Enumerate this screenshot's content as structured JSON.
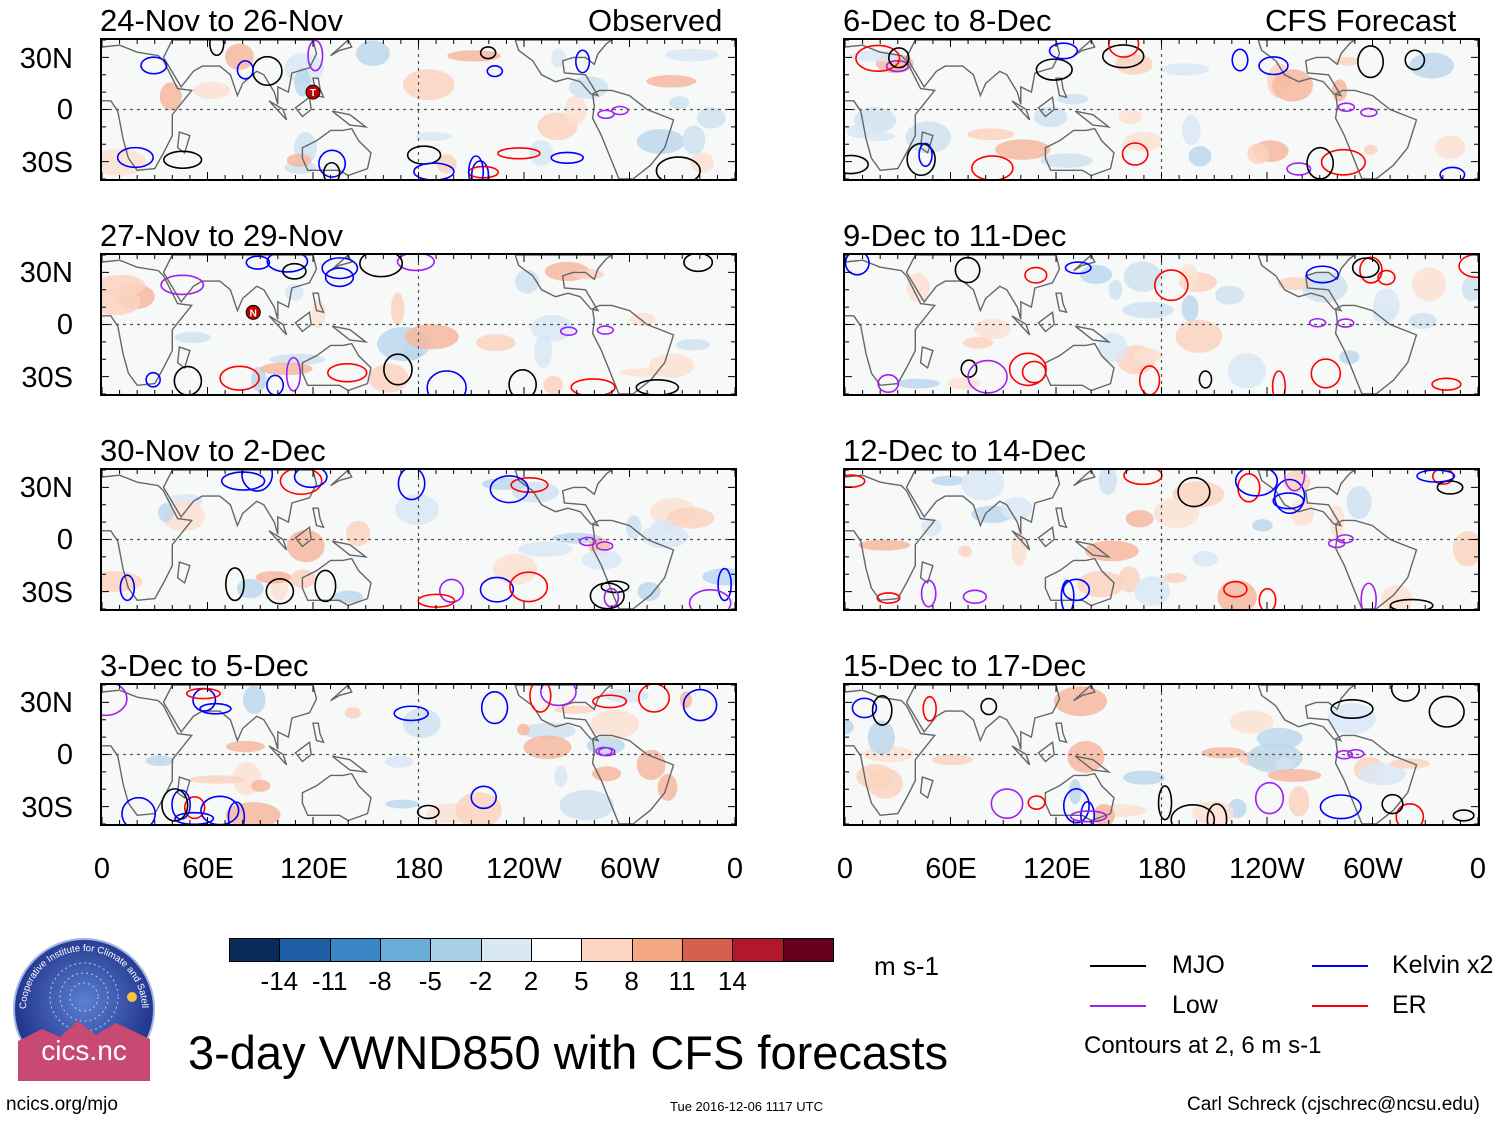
{
  "figure": {
    "main_title": "3-day VWND850 with CFS forecasts",
    "footer_left": "ncics.org/mjo",
    "footer_center": "Tue 2016-12-06 1117 UTC",
    "footer_right": "Carl Schreck (cjschrec@ncsu.edu)",
    "logo_text": "cics.nc",
    "logo_ring_text": "Cooperative Institute for Climate and Satellites"
  },
  "chart_data": {
    "type": "heatmap",
    "variable": "VWND850",
    "units": "m s-1",
    "columns": [
      {
        "header": "Observed",
        "panels": [
          "24-Nov to 26-Nov",
          "27-Nov to 29-Nov",
          "30-Nov to 2-Dec",
          "3-Dec to 5-Dec"
        ]
      },
      {
        "header": "CFS Forecast",
        "panels": [
          "6-Dec to 8-Dec",
          "9-Dec to 11-Dec",
          "12-Dec to 14-Dec",
          "15-Dec to 17-Dec"
        ]
      }
    ],
    "lat_ticks": [
      "30N",
      "0",
      "30S"
    ],
    "lon_ticks": [
      "0",
      "60E",
      "120E",
      "180",
      "120W",
      "60W",
      "0"
    ],
    "lat_range": [
      -40,
      40
    ],
    "lon_range": [
      0,
      360
    ],
    "colorbar": {
      "levels": [
        "-14",
        "-11",
        "-8",
        "-5",
        "-2",
        "2",
        "5",
        "8",
        "11",
        "14"
      ],
      "colors": [
        "#0b2a5c",
        "#1f5fa6",
        "#3a86c4",
        "#6aacd8",
        "#a7cfe8",
        "#d8e9f3",
        "#ffffff",
        "#fdd6c2",
        "#f4a582",
        "#d6604d",
        "#b2182b",
        "#67001f"
      ],
      "units_label": "m s-1"
    },
    "legend": [
      {
        "label": "MJO",
        "color": "#000000"
      },
      {
        "label": "Kelvin x2",
        "color": "#0000ff"
      },
      {
        "label": "Low",
        "color": "#a020f0"
      },
      {
        "label": "ER",
        "color": "#ff0000"
      }
    ],
    "contour_note": "Contours at 2, 6 m s-1",
    "storm_markers": [
      {
        "panel": "24-Nov to 26-Nov",
        "symbol": "T",
        "lon": 120,
        "lat": 10
      },
      {
        "panel": "27-Nov to 29-Nov",
        "symbol": "N",
        "lon": 86,
        "lat": 7
      }
    ]
  }
}
